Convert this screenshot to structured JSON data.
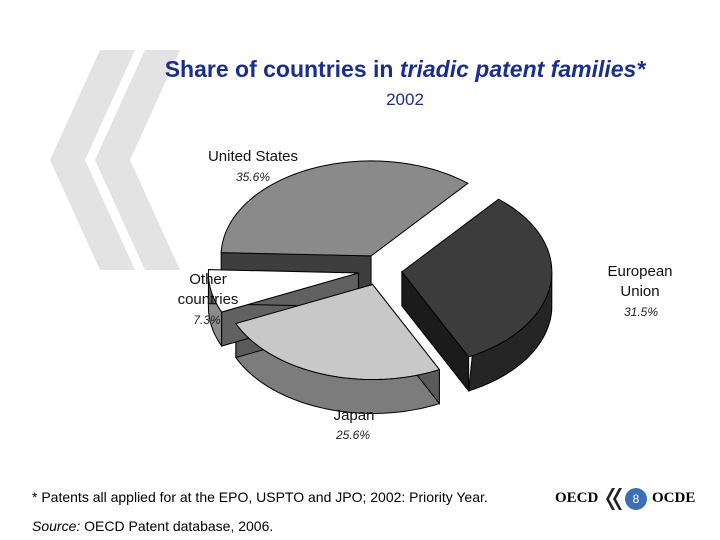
{
  "header": {
    "title_main": "Share of countries in ",
    "title_italic": "triadic patent families*",
    "subtitle": "2002"
  },
  "chart_data": {
    "type": "pie",
    "title": "Share of countries in triadic patent families*",
    "subtitle": "2002",
    "three_d": true,
    "exploded": true,
    "categories": [
      "United States",
      "European Union",
      "Japan",
      "Other countries"
    ],
    "values": [
      35.6,
      31.5,
      25.6,
      7.3
    ],
    "value_labels": [
      "35.6%",
      "31.5%",
      "25.6%",
      "7.3%"
    ],
    "colors": [
      "#8a8a8a",
      "#3c3c3c",
      "#c8c8c8",
      "#ffffff"
    ]
  },
  "labels": {
    "us_name": "United States",
    "us_pct": "35.6%",
    "eu_name_1": "European",
    "eu_name_2": "Union",
    "eu_pct": "31.5%",
    "jp_name": "Japan",
    "jp_pct": "25.6%",
    "other_name_1": "Other",
    "other_name_2": "countries",
    "other_pct": "7.3%"
  },
  "footer": {
    "footnote": "* Patents all applied for at the EPO, USPTO and JPO; 2002: Priority Year.",
    "source_label": "Source:",
    "source_text": "  OECD Patent database, 2006.",
    "logo_left": "OECD",
    "logo_right": "OCDE",
    "page_number": "8"
  }
}
